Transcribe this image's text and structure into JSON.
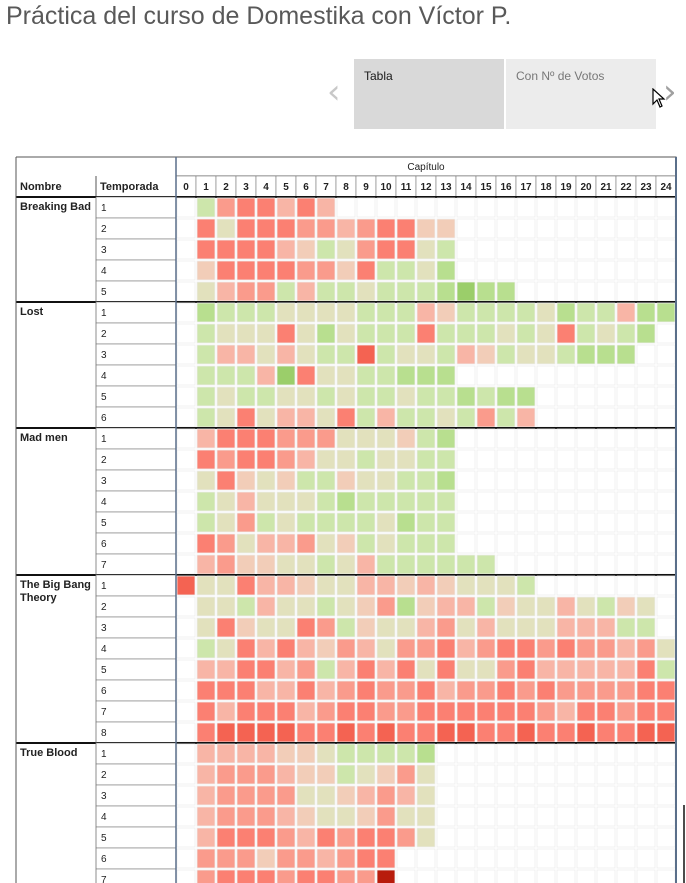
{
  "page": {
    "title": "Práctica del curso de Domestika con Víctor P."
  },
  "carousel": {
    "tabs": [
      {
        "label": "Tabla",
        "active": true
      },
      {
        "label": "Con Nº de Votos",
        "active": false
      }
    ],
    "prev_icon": "chevron-left-icon",
    "next_icon": "chevron-right-icon"
  },
  "chart_data": {
    "type": "heatmap",
    "column_group_label": "Capítulo",
    "row_headers": [
      "Nombre",
      "Temporada"
    ],
    "columns": [
      "0",
      "1",
      "2",
      "3",
      "4",
      "5",
      "6",
      "7",
      "8",
      "9",
      "10",
      "11",
      "12",
      "13",
      "14",
      "15",
      "16",
      "17",
      "18",
      "19",
      "20",
      "21",
      "22",
      "23",
      "24"
    ],
    "color_scale": [
      "#9bce6a",
      "#b8df8f",
      "#cde6ab",
      "#e2e1bd",
      "#f2cdb8",
      "#f8b5a6",
      "#fa9b8c",
      "#fb8072",
      "#f46352",
      "#b81c0c"
    ],
    "color_scale_note": "levels 1-10 mapped to color_scale index 0-9, empty = no episode",
    "shows": [
      {
        "name": "Breaking Bad",
        "seasons": [
          {
            "season": "1",
            "cells": [
              null,
              2,
              6,
              7,
              7,
              5,
              7,
              5
            ]
          },
          {
            "season": "2",
            "cells": [
              null,
              7,
              3,
              7,
              7,
              7,
              6,
              6,
              5,
              6,
              7,
              7,
              4,
              4
            ]
          },
          {
            "season": "3",
            "cells": [
              null,
              7,
              7,
              7,
              7,
              5,
              4,
              2,
              3,
              6,
              7,
              7,
              3,
              2
            ]
          },
          {
            "season": "4",
            "cells": [
              null,
              4,
              7,
              7,
              7,
              7,
              6,
              6,
              4,
              7,
              2,
              2,
              3,
              1
            ]
          },
          {
            "season": "5",
            "cells": [
              null,
              3,
              5,
              6,
              6,
              2,
              5,
              2,
              2,
              3,
              2,
              2,
              2,
              1,
              0,
              1,
              1
            ]
          }
        ]
      },
      {
        "name": "Lost",
        "seasons": [
          {
            "season": "1",
            "cells": [
              null,
              1,
              2,
              2,
              2,
              3,
              3,
              3,
              3,
              2,
              2,
              2,
              5,
              4,
              2,
              2,
              2,
              2,
              3,
              1,
              2,
              2,
              5,
              1,
              1
            ]
          },
          {
            "season": "2",
            "cells": [
              null,
              2,
              3,
              3,
              3,
              7,
              3,
              1,
              3,
              2,
              2,
              2,
              7,
              2,
              2,
              2,
              3,
              2,
              3,
              7,
              2,
              3,
              2,
              1
            ]
          },
          {
            "season": "3",
            "cells": [
              null,
              2,
              5,
              5,
              3,
              5,
              3,
              2,
              2,
              8,
              2,
              3,
              3,
              2,
              5,
              4,
              2,
              3,
              3,
              2,
              1,
              1,
              1
            ]
          },
          {
            "season": "4",
            "cells": [
              null,
              2,
              2,
              2,
              5,
              0,
              7,
              3,
              3,
              2,
              2,
              1,
              1,
              1
            ]
          },
          {
            "season": "5",
            "cells": [
              null,
              2,
              3,
              2,
              2,
              3,
              3,
              2,
              3,
              2,
              2,
              3,
              2,
              2,
              1,
              2,
              1,
              1
            ]
          },
          {
            "season": "6",
            "cells": [
              null,
              2,
              3,
              7,
              3,
              5,
              5,
              3,
              7,
              2,
              5,
              2,
              2,
              3,
              2,
              6,
              2,
              5
            ]
          }
        ]
      },
      {
        "name": "Mad men",
        "seasons": [
          {
            "season": "1",
            "cells": [
              null,
              5,
              7,
              7,
              7,
              6,
              6,
              6,
              3,
              3,
              3,
              4,
              2,
              1
            ]
          },
          {
            "season": "2",
            "cells": [
              null,
              7,
              6,
              7,
              7,
              6,
              5,
              3,
              3,
              2,
              3,
              3,
              2,
              2
            ]
          },
          {
            "season": "3",
            "cells": [
              null,
              3,
              7,
              4,
              3,
              4,
              2,
              2,
              4,
              3,
              3,
              2,
              2,
              1
            ]
          },
          {
            "season": "4",
            "cells": [
              null,
              2,
              3,
              5,
              3,
              3,
              3,
              2,
              1,
              2,
              2,
              2,
              2,
              2
            ]
          },
          {
            "season": "5",
            "cells": [
              null,
              2,
              3,
              6,
              2,
              3,
              2,
              2,
              2,
              2,
              3,
              1,
              2,
              2
            ]
          },
          {
            "season": "6",
            "cells": [
              null,
              7,
              6,
              3,
              5,
              5,
              6,
              3,
              4,
              2,
              3,
              2,
              2,
              2
            ]
          },
          {
            "season": "7",
            "cells": [
              null,
              5,
              6,
              4,
              4,
              3,
              3,
              2,
              3,
              5,
              2,
              2,
              2,
              2,
              2,
              2
            ]
          }
        ]
      },
      {
        "name": "The Big Bang Theory",
        "seasons": [
          {
            "season": "1",
            "cells": [
              8,
              3,
              3,
              7,
              5,
              5,
              4,
              3,
              3,
              5,
              5,
              4,
              5,
              4,
              3,
              3,
              3,
              2
            ]
          },
          {
            "season": "2",
            "cells": [
              null,
              3,
              3,
              2,
              5,
              3,
              3,
              2,
              3,
              4,
              6,
              1,
              4,
              5,
              5,
              2,
              4,
              3,
              3,
              5,
              3,
              2,
              4,
              3
            ]
          },
          {
            "season": "3",
            "cells": [
              null,
              3,
              7,
              4,
              3,
              3,
              7,
              6,
              2,
              4,
              3,
              3,
              5,
              6,
              3,
              5,
              3,
              3,
              3,
              5,
              5,
              5,
              2,
              2
            ]
          },
          {
            "season": "4",
            "cells": [
              null,
              2,
              3,
              7,
              5,
              7,
              5,
              4,
              6,
              5,
              3,
              6,
              6,
              7,
              5,
              6,
              7,
              7,
              6,
              7,
              6,
              6,
              5,
              6,
              3
            ]
          },
          {
            "season": "5",
            "cells": [
              null,
              5,
              5,
              7,
              7,
              5,
              6,
              2,
              5,
              7,
              5,
              7,
              3,
              7,
              3,
              3,
              6,
              7,
              5,
              5,
              5,
              5,
              5,
              7,
              2
            ]
          },
          {
            "season": "6",
            "cells": [
              null,
              7,
              7,
              7,
              5,
              5,
              7,
              5,
              6,
              7,
              6,
              6,
              7,
              5,
              6,
              6,
              7,
              6,
              7,
              6,
              6,
              6,
              6,
              7,
              7
            ]
          },
          {
            "season": "7",
            "cells": [
              null,
              7,
              5,
              7,
              7,
              7,
              5,
              6,
              7,
              7,
              6,
              6,
              7,
              7,
              7,
              7,
              7,
              7,
              6,
              5,
              7,
              7,
              6,
              7,
              7
            ]
          },
          {
            "season": "8",
            "cells": [
              null,
              7,
              8,
              8,
              8,
              8,
              7,
              7,
              8,
              7,
              8,
              7,
              7,
              8,
              8,
              7,
              7,
              8,
              7,
              7,
              8,
              7,
              7,
              8,
              8
            ]
          }
        ]
      },
      {
        "name": "True Blood",
        "seasons": [
          {
            "season": "1",
            "cells": [
              null,
              5,
              5,
              5,
              5,
              4,
              4,
              3,
              2,
              2,
              2,
              2,
              1
            ]
          },
          {
            "season": "2",
            "cells": [
              null,
              5,
              6,
              6,
              6,
              5,
              4,
              4,
              2,
              3,
              4,
              6,
              3
            ]
          },
          {
            "season": "3",
            "cells": [
              null,
              5,
              6,
              6,
              6,
              6,
              3,
              3,
              4,
              5,
              6,
              5,
              3
            ]
          },
          {
            "season": "4",
            "cells": [
              null,
              5,
              6,
              6,
              6,
              5,
              4,
              3,
              3,
              4,
              6,
              3,
              3
            ]
          },
          {
            "season": "5",
            "cells": [
              null,
              5,
              7,
              7,
              7,
              6,
              5,
              7,
              6,
              7,
              7,
              6,
              3
            ]
          },
          {
            "season": "6",
            "cells": [
              null,
              6,
              6,
              6,
              4,
              6,
              6,
              5,
              6,
              7,
              7
            ]
          },
          {
            "season": "7",
            "cells": [
              null,
              6,
              7,
              7,
              7,
              6,
              7,
              7,
              6,
              6,
              9
            ]
          }
        ]
      }
    ]
  }
}
